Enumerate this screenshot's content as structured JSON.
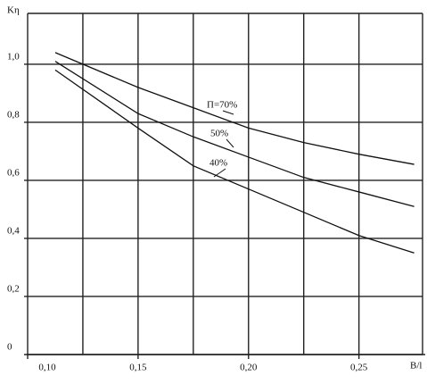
{
  "chart_data": {
    "type": "line",
    "y_label": "Kη",
    "x_label": "B/l",
    "x": [
      0.1125,
      0.15,
      0.175,
      0.2,
      0.225,
      0.25,
      0.275
    ],
    "series": [
      {
        "name": "П=70%",
        "color": "#111111",
        "values": [
          1.04,
          0.92,
          0.85,
          0.78,
          0.73,
          0.69,
          0.655
        ]
      },
      {
        "name": "50%",
        "color": "#111111",
        "values": [
          1.01,
          0.83,
          0.75,
          0.68,
          0.61,
          0.56,
          0.51
        ]
      },
      {
        "name": "40%",
        "color": "#111111",
        "values": [
          0.98,
          0.78,
          0.65,
          0.57,
          0.49,
          0.41,
          0.35
        ]
      }
    ],
    "xlim": [
      0.1,
      0.28
    ],
    "ylim": [
      0,
      1.175
    ],
    "xticks": [
      {
        "value": 0.1,
        "label": "0,10"
      },
      {
        "value": 0.15,
        "label": "0,15"
      },
      {
        "value": 0.2,
        "label": "0,20"
      },
      {
        "value": 0.25,
        "label": "0,25"
      }
    ],
    "xgrid": [
      0.125,
      0.15,
      0.175,
      0.2,
      0.225,
      0.25
    ],
    "yticks": [
      0,
      {
        "value": 0.2,
        "label": "0,2"
      },
      {
        "value": 0.4,
        "label": "0,4"
      },
      {
        "value": 0.6,
        "label": "0,6"
      },
      {
        "value": 0.8,
        "label": "0,8"
      },
      {
        "value": 1.0,
        "label": "1,0"
      }
    ],
    "grid": true
  }
}
